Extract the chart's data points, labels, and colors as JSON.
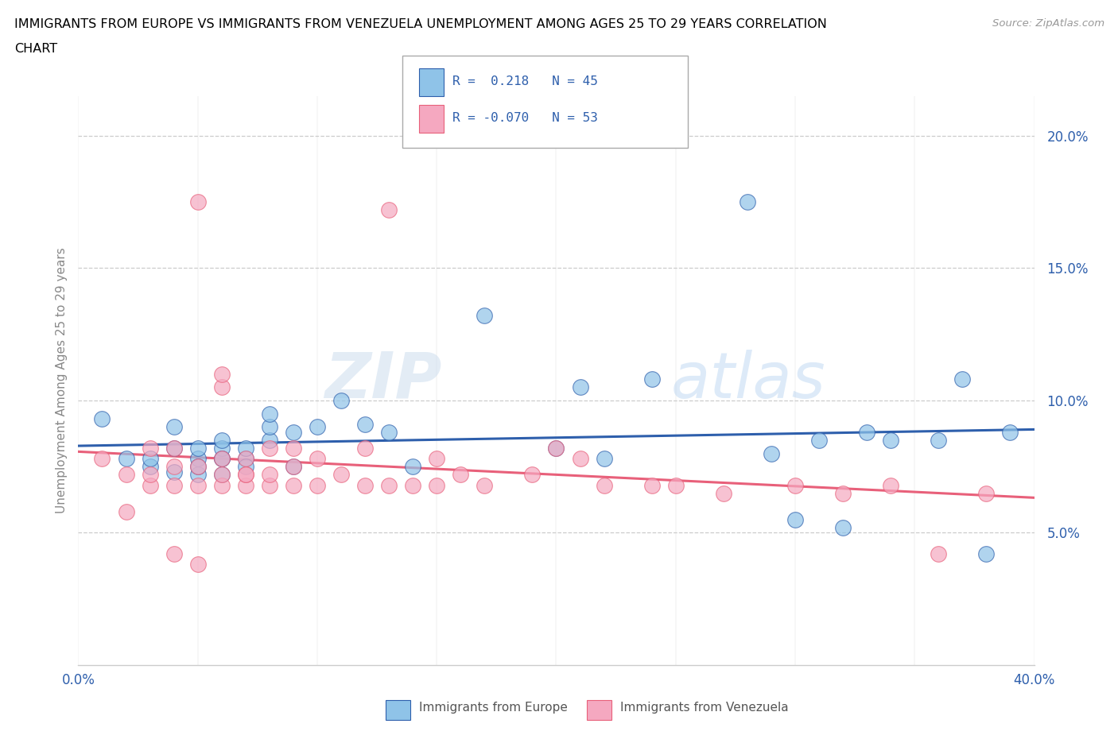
{
  "title_line1": "IMMIGRANTS FROM EUROPE VS IMMIGRANTS FROM VENEZUELA UNEMPLOYMENT AMONG AGES 25 TO 29 YEARS CORRELATION",
  "title_line2": "CHART",
  "source": "Source: ZipAtlas.com",
  "ylabel": "Unemployment Among Ages 25 to 29 years",
  "xlim": [
    0.0,
    0.4
  ],
  "ylim": [
    0.0,
    0.215
  ],
  "yticks": [
    0.05,
    0.1,
    0.15,
    0.2
  ],
  "ytick_labels": [
    "5.0%",
    "10.0%",
    "15.0%",
    "20.0%"
  ],
  "xticks": [
    0.0,
    0.05,
    0.1,
    0.15,
    0.2,
    0.25,
    0.3,
    0.35,
    0.4
  ],
  "blue_color": "#8FC3E8",
  "pink_color": "#F5A8C0",
  "blue_line_color": "#2E5FAC",
  "pink_line_color": "#E8607A",
  "watermark": "ZIPatlas",
  "legend_label1": "Immigrants from Europe",
  "legend_label2": "Immigrants from Venezuela",
  "blue_scatter_x": [
    0.01,
    0.02,
    0.03,
    0.03,
    0.04,
    0.04,
    0.04,
    0.05,
    0.05,
    0.05,
    0.05,
    0.06,
    0.06,
    0.06,
    0.06,
    0.06,
    0.07,
    0.07,
    0.07,
    0.08,
    0.08,
    0.08,
    0.09,
    0.09,
    0.1,
    0.11,
    0.12,
    0.13,
    0.14,
    0.17,
    0.2,
    0.21,
    0.22,
    0.24,
    0.28,
    0.29,
    0.3,
    0.31,
    0.32,
    0.33,
    0.34,
    0.36,
    0.37,
    0.38,
    0.39
  ],
  "blue_scatter_y": [
    0.093,
    0.078,
    0.075,
    0.078,
    0.073,
    0.082,
    0.09,
    0.072,
    0.078,
    0.082,
    0.075,
    0.072,
    0.078,
    0.082,
    0.078,
    0.085,
    0.078,
    0.082,
    0.075,
    0.085,
    0.09,
    0.095,
    0.088,
    0.075,
    0.09,
    0.1,
    0.091,
    0.088,
    0.075,
    0.132,
    0.082,
    0.105,
    0.078,
    0.108,
    0.175,
    0.08,
    0.055,
    0.085,
    0.052,
    0.088,
    0.085,
    0.085,
    0.108,
    0.042,
    0.088
  ],
  "pink_scatter_x": [
    0.01,
    0.02,
    0.02,
    0.03,
    0.03,
    0.03,
    0.04,
    0.04,
    0.04,
    0.04,
    0.05,
    0.05,
    0.05,
    0.05,
    0.06,
    0.06,
    0.06,
    0.06,
    0.06,
    0.07,
    0.07,
    0.07,
    0.07,
    0.08,
    0.08,
    0.08,
    0.09,
    0.09,
    0.09,
    0.1,
    0.1,
    0.11,
    0.12,
    0.12,
    0.13,
    0.13,
    0.14,
    0.15,
    0.15,
    0.16,
    0.17,
    0.19,
    0.2,
    0.21,
    0.22,
    0.24,
    0.25,
    0.27,
    0.3,
    0.32,
    0.34,
    0.36,
    0.38
  ],
  "pink_scatter_y": [
    0.078,
    0.058,
    0.072,
    0.068,
    0.072,
    0.082,
    0.042,
    0.068,
    0.075,
    0.082,
    0.175,
    0.038,
    0.068,
    0.075,
    0.068,
    0.072,
    0.078,
    0.105,
    0.11,
    0.068,
    0.072,
    0.078,
    0.072,
    0.068,
    0.072,
    0.082,
    0.068,
    0.075,
    0.082,
    0.068,
    0.078,
    0.072,
    0.068,
    0.082,
    0.068,
    0.172,
    0.068,
    0.068,
    0.078,
    0.072,
    0.068,
    0.072,
    0.082,
    0.078,
    0.068,
    0.068,
    0.068,
    0.065,
    0.068,
    0.065,
    0.068,
    0.042,
    0.065
  ]
}
